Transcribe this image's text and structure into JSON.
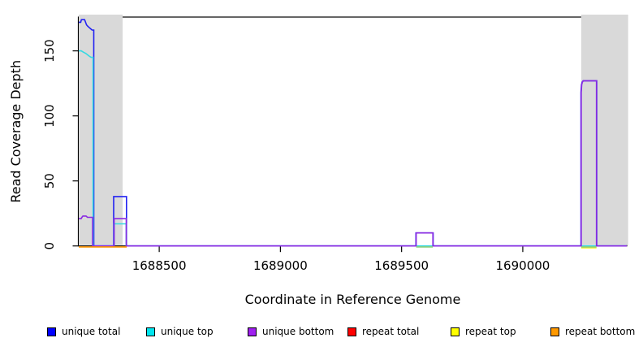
{
  "chart_data": {
    "type": "line",
    "title": "",
    "xlabel": "Coordinate in Reference Genome",
    "ylabel": "Read Coverage Depth",
    "xlim": [
      1688168,
      1690429
    ],
    "ylim": [
      0,
      176
    ],
    "x_ticks": [
      "1688500",
      "1689000",
      "1689500",
      "1690000"
    ],
    "x_tick_values": [
      1688500,
      1689000,
      1689500,
      1690000
    ],
    "y_ticks": [
      "0",
      "50",
      "100",
      "150"
    ],
    "y_tick_values": [
      0,
      50,
      100,
      150
    ],
    "grid": false,
    "legend_position": "bottom",
    "band_color": "#d9d9d9",
    "repeat_regions_bp": [
      [
        1688168,
        1688349
      ],
      [
        1690241,
        1690428
      ]
    ],
    "series": [
      {
        "name": "unique total",
        "color": "#2323f2",
        "legend_color": "#0000ff",
        "points": [
          [
            1688168,
            172
          ],
          [
            1688176,
            172
          ],
          [
            1688179,
            174
          ],
          [
            1688192,
            174
          ],
          [
            1688196,
            172
          ],
          [
            1688200,
            170
          ],
          [
            1688205,
            169
          ],
          [
            1688211,
            168
          ],
          [
            1688217,
            167
          ],
          [
            1688223,
            166
          ],
          [
            1688230,
            166
          ],
          [
            1688230,
            0
          ],
          [
            1688312,
            0
          ],
          [
            1688312,
            38
          ],
          [
            1688365,
            38
          ],
          [
            1688365,
            0
          ],
          [
            1689559,
            0
          ],
          [
            1689559,
            10
          ],
          [
            1689630,
            10
          ],
          [
            1689630,
            0
          ],
          [
            1690240,
            0
          ],
          [
            1690240,
            118
          ],
          [
            1690242,
            124
          ],
          [
            1690245,
            126
          ],
          [
            1690249,
            127
          ],
          [
            1690305,
            127
          ],
          [
            1690305,
            0
          ],
          [
            1690429,
            0
          ]
        ]
      },
      {
        "name": "unique top",
        "color": "#35d9e2",
        "legend_color": "#00e5ee",
        "points": [
          [
            1688168,
            150
          ],
          [
            1688178,
            150
          ],
          [
            1688187,
            149
          ],
          [
            1688197,
            148
          ],
          [
            1688204,
            147
          ],
          [
            1688211,
            146
          ],
          [
            1688219,
            145
          ],
          [
            1688227,
            145
          ],
          [
            1688227,
            0
          ],
          [
            1688314,
            0
          ],
          [
            1688314,
            17
          ],
          [
            1688364,
            17
          ],
          [
            1688364,
            0
          ],
          [
            1690429,
            0
          ]
        ]
      },
      {
        "name": "unique bottom",
        "color": "#8a2be2",
        "legend_color": "#a020f0",
        "points": [
          [
            1688168,
            21
          ],
          [
            1688178,
            21
          ],
          [
            1688181,
            22
          ],
          [
            1688185,
            23
          ],
          [
            1688198,
            23
          ],
          [
            1688204,
            22
          ],
          [
            1688225,
            22
          ],
          [
            1688225,
            0
          ],
          [
            1688314,
            0
          ],
          [
            1688314,
            21
          ],
          [
            1688364,
            21
          ],
          [
            1688364,
            0
          ],
          [
            1689560,
            0
          ],
          [
            1689560,
            10
          ],
          [
            1689629,
            10
          ],
          [
            1689629,
            0
          ],
          [
            1690241,
            0
          ],
          [
            1690241,
            118
          ],
          [
            1690243,
            124
          ],
          [
            1690246,
            126
          ],
          [
            1690250,
            127
          ],
          [
            1690304,
            127
          ],
          [
            1690304,
            0
          ],
          [
            1690429,
            0
          ]
        ]
      },
      {
        "name": "repeat total",
        "color": "#ff0000",
        "legend_color": "#ff0000",
        "points": []
      },
      {
        "name": "repeat top",
        "color": "#f2f20a",
        "legend_color": "#ffff00",
        "points": [
          [
            1690241,
            0
          ],
          [
            1690304,
            0
          ]
        ]
      },
      {
        "name": "repeat bottom",
        "color": "#ff9500",
        "legend_color": "#ff9900",
        "points": [
          [
            1688168,
            0
          ],
          [
            1688366,
            0
          ]
        ]
      }
    ],
    "baseline_overlap_segments": [
      {
        "color": "#8ccf7c",
        "span": [
          1689560,
          1689629
        ]
      },
      {
        "color": "#8ccf7c",
        "span": [
          1690241,
          1690304
        ]
      }
    ]
  }
}
